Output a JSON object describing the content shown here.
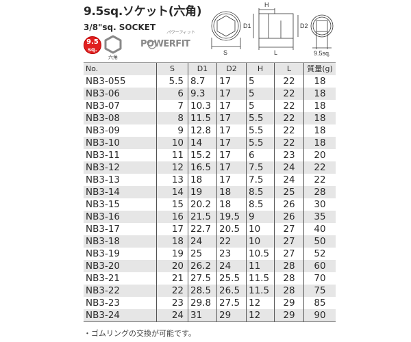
{
  "header": {
    "title": "9.5sq.ソケット(六角)",
    "subtitle": "3/8\"sq. SOCKET",
    "badge_top": "9.5",
    "badge_bottom": "sq.",
    "hex_label": "六角",
    "logo_text": "POWERFIT",
    "logo_kana": "パワーフィット",
    "badge_color": "#e02020"
  },
  "diagram_labels": {
    "s": "S",
    "d1": "D1",
    "h": "H",
    "l": "L",
    "d2": "D2",
    "drive": "9.5sq."
  },
  "table": {
    "headers": [
      "No.",
      "S",
      "D1",
      "D2",
      "H",
      "L",
      "質量(g)"
    ],
    "rows": [
      [
        "NB3-055",
        "5.5",
        "8.7",
        "17",
        "5",
        "22",
        "18"
      ],
      [
        "NB3-06",
        "6",
        "9.3",
        "17",
        "5",
        "22",
        "18"
      ],
      [
        "NB3-07",
        "7",
        "10.3",
        "17",
        "5",
        "22",
        "18"
      ],
      [
        "NB3-08",
        "8",
        "11.5",
        "17",
        "5.5",
        "22",
        "18"
      ],
      [
        "NB3-09",
        "9",
        "12.8",
        "17",
        "5.5",
        "22",
        "18"
      ],
      [
        "NB3-10",
        "10",
        "14",
        "17",
        "5.5",
        "22",
        "18"
      ],
      [
        "NB3-11",
        "11",
        "15.2",
        "17",
        "6",
        "23",
        "20"
      ],
      [
        "NB3-12",
        "12",
        "16.5",
        "17",
        "7.5",
        "24",
        "22"
      ],
      [
        "NB3-13",
        "13",
        "18",
        "17",
        "7.5",
        "24",
        "22"
      ],
      [
        "NB3-14",
        "14",
        "19",
        "18",
        "8.5",
        "25",
        "28"
      ],
      [
        "NB3-15",
        "15",
        "20.2",
        "18",
        "8.5",
        "26",
        "30"
      ],
      [
        "NB3-16",
        "16",
        "21.5",
        "19.5",
        "9",
        "26",
        "35"
      ],
      [
        "NB3-17",
        "17",
        "22.7",
        "20.5",
        "10",
        "27",
        "40"
      ],
      [
        "NB3-18",
        "18",
        "24",
        "22",
        "10",
        "27",
        "50"
      ],
      [
        "NB3-19",
        "19",
        "25",
        "23",
        "10.5",
        "27",
        "52"
      ],
      [
        "NB3-20",
        "20",
        "26.2",
        "24",
        "11",
        "28",
        "60"
      ],
      [
        "NB3-21",
        "21",
        "27.5",
        "25.5",
        "11.5",
        "28",
        "70"
      ],
      [
        "NB3-22",
        "22",
        "28.5",
        "26.5",
        "11.5",
        "28",
        "75"
      ],
      [
        "NB3-23",
        "23",
        "29.8",
        "27.5",
        "12",
        "29",
        "85"
      ],
      [
        "NB3-24",
        "24",
        "31",
        "29",
        "12",
        "29",
        "90"
      ]
    ]
  },
  "note": "・ゴムリングの交換が可能です。"
}
